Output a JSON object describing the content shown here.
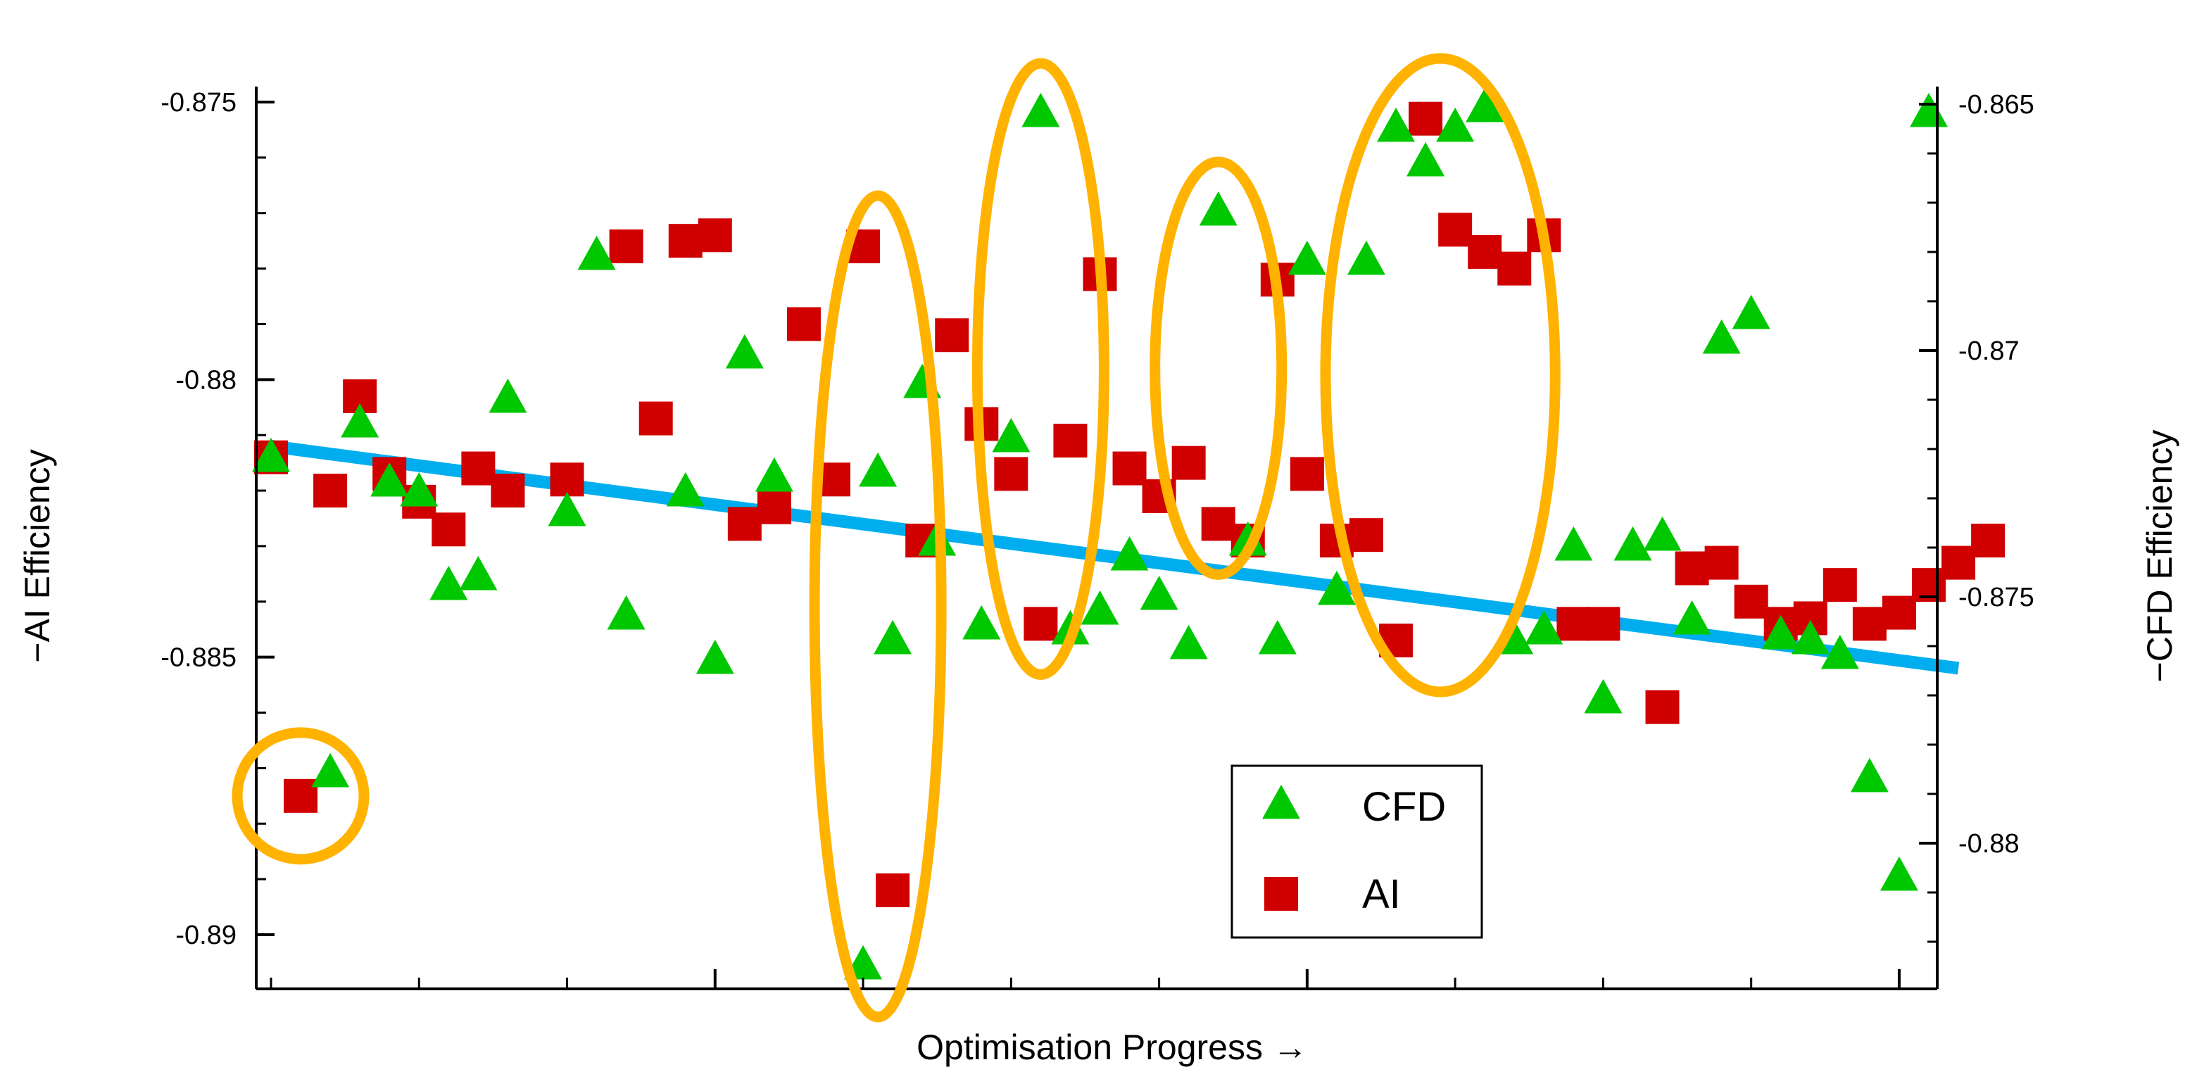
{
  "chart_data": {
    "type": "scatter",
    "title": "",
    "xlabel": "Optimisation Progress →",
    "ylabel_left": "−AI Efficiency",
    "ylabel_right": "−CFD Efficiency",
    "xlim": [
      0,
      56
    ],
    "ylim_left": [
      -0.891,
      -0.875
    ],
    "ylim_right": [
      -0.8831,
      -0.8651
    ],
    "left_ticks": [
      {
        "value": -0.875,
        "label": "-0.875"
      },
      {
        "value": -0.88,
        "label": "-0.88"
      },
      {
        "value": -0.885,
        "label": "-0.885"
      },
      {
        "value": -0.89,
        "label": "-0.89"
      }
    ],
    "right_ticks": [
      {
        "value": -0.865,
        "label": "-0.865"
      },
      {
        "value": -0.87,
        "label": "-0.87"
      },
      {
        "value": -0.875,
        "label": "-0.875"
      },
      {
        "value": -0.88,
        "label": "-0.88"
      }
    ],
    "x_major_ticks": [
      15,
      35,
      55
    ],
    "legend": {
      "position": "bottom-center",
      "entries": [
        "CFD",
        "AI"
      ]
    },
    "colors": {
      "cfd": "#00c800",
      "ai": "#d00000",
      "trend": "#00aeef",
      "highlight": "#ffb300",
      "axis": "#000000"
    },
    "series": [
      {
        "name": "CFD",
        "axis": "right",
        "marker": "triangle",
        "points": [
          [
            0,
            -0.8722
          ],
          [
            2,
            -0.8786
          ],
          [
            3,
            -0.8715
          ],
          [
            4,
            -0.8727
          ],
          [
            5,
            -0.8729
          ],
          [
            6,
            -0.8748
          ],
          [
            7,
            -0.8746
          ],
          [
            8,
            -0.871
          ],
          [
            10,
            -0.8733
          ],
          [
            11,
            -0.8681
          ],
          [
            12,
            -0.8754
          ],
          [
            14,
            -0.8729
          ],
          [
            15,
            -0.8763
          ],
          [
            16,
            -0.8701
          ],
          [
            17,
            -0.8726
          ],
          [
            20,
            -0.8825
          ],
          [
            20.5,
            -0.8725
          ],
          [
            21,
            -0.8759
          ],
          [
            22,
            -0.8707
          ],
          [
            22.5,
            -0.8739
          ],
          [
            24,
            -0.8756
          ],
          [
            25,
            -0.8718
          ],
          [
            26,
            -0.8652
          ],
          [
            27,
            -0.8757
          ],
          [
            28,
            -0.8753
          ],
          [
            29,
            -0.8742
          ],
          [
            30,
            -0.875
          ],
          [
            31,
            -0.876
          ],
          [
            32,
            -0.8672
          ],
          [
            33,
            -0.8739
          ],
          [
            34,
            -0.8759
          ],
          [
            35,
            -0.8682
          ],
          [
            36,
            -0.8749
          ],
          [
            37,
            -0.8682
          ],
          [
            38,
            -0.8655
          ],
          [
            39,
            -0.8662
          ],
          [
            40,
            -0.8655
          ],
          [
            41,
            -0.8651
          ],
          [
            42,
            -0.8759
          ],
          [
            43,
            -0.8757
          ],
          [
            44,
            -0.874
          ],
          [
            45,
            -0.8771
          ],
          [
            46,
            -0.874
          ],
          [
            47,
            -0.8738
          ],
          [
            48,
            -0.8755
          ],
          [
            49,
            -0.8698
          ],
          [
            50,
            -0.8693
          ],
          [
            51,
            -0.8758
          ],
          [
            52,
            -0.8759
          ],
          [
            53,
            -0.8762
          ],
          [
            54,
            -0.8787
          ],
          [
            55,
            -0.8807
          ],
          [
            56,
            -0.8652
          ]
        ]
      },
      {
        "name": "AI",
        "axis": "left",
        "marker": "square",
        "points": [
          [
            0,
            -0.8814
          ],
          [
            1,
            -0.8875
          ],
          [
            2,
            -0.882
          ],
          [
            3,
            -0.8803
          ],
          [
            4,
            -0.8817
          ],
          [
            5,
            -0.8822
          ],
          [
            6,
            -0.8827
          ],
          [
            7,
            -0.8816
          ],
          [
            8,
            -0.882
          ],
          [
            10,
            -0.8818
          ],
          [
            12,
            -0.8776
          ],
          [
            13,
            -0.8807
          ],
          [
            14,
            -0.8775
          ],
          [
            15,
            -0.8774
          ],
          [
            16,
            -0.8826
          ],
          [
            17,
            -0.8823
          ],
          [
            18,
            -0.879
          ],
          [
            19,
            -0.8818
          ],
          [
            20,
            -0.8776
          ],
          [
            21,
            -0.8892
          ],
          [
            22,
            -0.8829
          ],
          [
            23,
            -0.8792
          ],
          [
            24,
            -0.8808
          ],
          [
            25,
            -0.8817
          ],
          [
            26,
            -0.8844
          ],
          [
            27,
            -0.8811
          ],
          [
            28,
            -0.8781
          ],
          [
            29,
            -0.8816
          ],
          [
            30,
            -0.8821
          ],
          [
            31,
            -0.8815
          ],
          [
            32,
            -0.8826
          ],
          [
            33,
            -0.8829
          ],
          [
            34,
            -0.8782
          ],
          [
            35,
            -0.8817
          ],
          [
            36,
            -0.8829
          ],
          [
            37,
            -0.8828
          ],
          [
            38,
            -0.8847
          ],
          [
            39,
            -0.8753
          ],
          [
            40,
            -0.8773
          ],
          [
            41,
            -0.8777
          ],
          [
            42,
            -0.878
          ],
          [
            43,
            -0.8774
          ],
          [
            44,
            -0.8844
          ],
          [
            45,
            -0.8844
          ],
          [
            47,
            -0.8859
          ],
          [
            48,
            -0.8834
          ],
          [
            49,
            -0.8833
          ],
          [
            50,
            -0.884
          ],
          [
            51,
            -0.8844
          ],
          [
            52,
            -0.8843
          ],
          [
            53,
            -0.8837
          ],
          [
            54,
            -0.8844
          ],
          [
            55,
            -0.8842
          ],
          [
            56,
            -0.8837
          ],
          [
            57,
            -0.8833
          ],
          [
            58,
            -0.8829
          ]
        ]
      }
    ],
    "trend_line": {
      "from": [
        0,
        -0.8812
      ],
      "to": [
        57,
        -0.8852
      ],
      "axis": "left"
    },
    "highlighted_groups": [
      {
        "x_range": [
          0.5,
          1.5
        ],
        "description": "outlier pair"
      },
      {
        "x_range": [
          20,
          21
        ],
        "description": "outlier pair"
      },
      {
        "x_range": [
          25.5,
          26.5
        ],
        "description": "outlier pair"
      },
      {
        "x_range": [
          31.5,
          32.5
        ],
        "description": "outlier pair"
      },
      {
        "x_range": [
          37,
          42
        ],
        "description": "outlier cluster"
      }
    ]
  }
}
